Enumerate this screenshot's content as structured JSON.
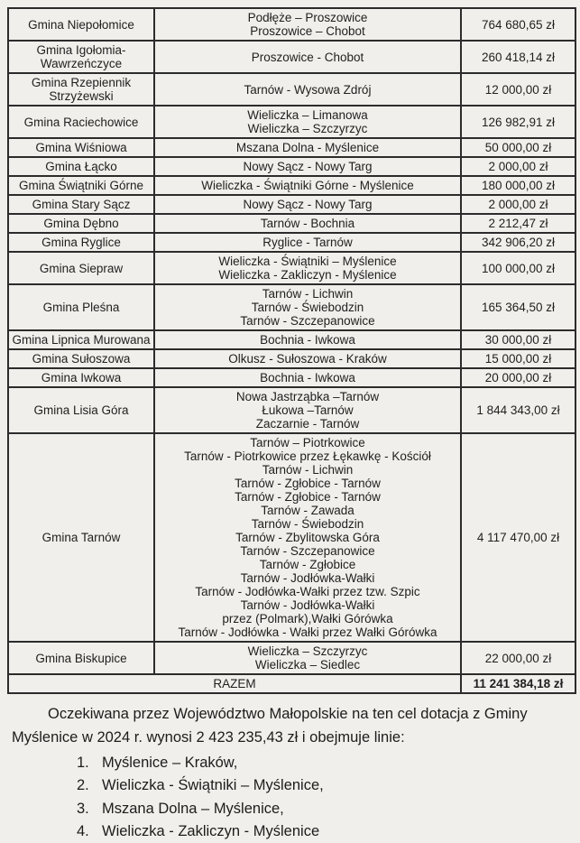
{
  "colors": {
    "paper": "#f0efeb",
    "ink": "#1e1e1e",
    "border": "#2c2c2c"
  },
  "table": {
    "rows": [
      {
        "gmina": "Gmina Niepołomice",
        "routes": [
          "Podłęże – Proszowice",
          "Proszowice – Chobot"
        ],
        "amount": "764 680,65 zł"
      },
      {
        "gmina": "Gmina Igołomia-Wawrzeńczyce",
        "routes": [
          "Proszowice - Chobot"
        ],
        "amount": "260 418,14 zł"
      },
      {
        "gmina": "Gmina Rzepiennik Strzyżewski",
        "routes": [
          "Tarnów - Wysowa Zdrój"
        ],
        "amount": "12 000,00 zł"
      },
      {
        "gmina": "Gmina Raciechowice",
        "routes": [
          "Wieliczka – Limanowa",
          "Wieliczka – Szczyrzyc"
        ],
        "amount": "126 982,91 zł"
      },
      {
        "gmina": "Gmina Wiśniowa",
        "routes": [
          "Mszana Dolna - Myślenice"
        ],
        "amount": "50 000,00 zł"
      },
      {
        "gmina": "Gmina Łącko",
        "routes": [
          "Nowy Sącz - Nowy Targ"
        ],
        "amount": "2 000,00 zł"
      },
      {
        "gmina": "Gmina Świątniki Górne",
        "routes": [
          "Wieliczka - Świątniki Górne - Myślenice"
        ],
        "amount": "180 000,00 zł"
      },
      {
        "gmina": "Gmina Stary Sącz",
        "routes": [
          "Nowy Sącz - Nowy Targ"
        ],
        "amount": "2 000,00 zł"
      },
      {
        "gmina": "Gmina Dębno",
        "routes": [
          "Tarnów - Bochnia"
        ],
        "amount": "2 212,47 zł"
      },
      {
        "gmina": "Gmina Ryglice",
        "routes": [
          "Ryglice - Tarnów"
        ],
        "amount": "342 906,20 zł"
      },
      {
        "gmina": "Gmina Siepraw",
        "routes": [
          "Wieliczka - Świątniki – Myślenice",
          "Wieliczka - Zakliczyn - Myślenice"
        ],
        "amount": "100 000,00 zł"
      },
      {
        "gmina": "Gmina Pleśna",
        "routes": [
          "Tarnów - Lichwin",
          "Tarnów - Świebodzin",
          "Tarnów - Szczepanowice"
        ],
        "amount": "165 364,50 zł"
      },
      {
        "gmina": "Gmina Lipnica Murowana",
        "routes": [
          "Bochnia - Iwkowa"
        ],
        "amount": "30 000,00 zł"
      },
      {
        "gmina": "Gmina Sułoszowa",
        "routes": [
          "Olkusz - Sułoszowa - Kraków"
        ],
        "amount": "15 000,00 zł"
      },
      {
        "gmina": "Gmina Iwkowa",
        "routes": [
          "Bochnia - Iwkowa"
        ],
        "amount": "20 000,00 zł"
      },
      {
        "gmina": "Gmina Lisia Góra",
        "routes": [
          "Nowa Jastrząbka –Tarnów",
          "Łukowa –Tarnów",
          "Zaczarnie - Tarnów"
        ],
        "amount": "1 844 343,00 zł"
      },
      {
        "gmina": "Gmina Tarnów",
        "routes": [
          "Tarnów – Piotrkowice",
          "Tarnów - Piotrkowice przez Łękawkę - Kościół",
          "Tarnów - Lichwin",
          "Tarnów - Zgłobice - Tarnów",
          "Tarnów - Zgłobice - Tarnów",
          "Tarnów - Zawada",
          "Tarnów - Świebodzin",
          "Tarnów - Zbylitowska Góra",
          "Tarnów - Szczepanowice",
          "Tarnów - Zgłobice",
          "Tarnów - Jodłówka-Wałki",
          "Tarnów - Jodłówka-Wałki przez tzw. Szpic",
          "Tarnów - Jodłówka-Wałki",
          "przez (Polmark),Wałki Górówka",
          "Tarnów - Jodłówka - Wałki przez Wałki Górówka"
        ],
        "amount": "4 117 470,00 zł"
      },
      {
        "gmina": "Gmina Biskupice",
        "routes": [
          "Wieliczka – Szczyrzyc",
          "Wieliczka – Siedlec"
        ],
        "amount": "22 000,00 zł"
      }
    ],
    "total_label": "RAZEM",
    "total_amount": "11 241 384,18 zł"
  },
  "paragraph": {
    "text": "Oczekiwana przez Województwo Małopolskie na ten cel dotacja z Gminy Myślenice w 2024 r. wynosi 2 423 235,43 zł i obejmuje linie:"
  },
  "list": {
    "items": [
      {
        "num": "1.",
        "text": "Myślenice – Kraków,"
      },
      {
        "num": "2.",
        "text": "Wieliczka - Świątniki – Myślenice,"
      },
      {
        "num": "3.",
        "text": "Mszana Dolna – Myślenice,"
      },
      {
        "num": "4.",
        "text": "Wieliczka - Zakliczyn - Myślenice"
      }
    ]
  }
}
